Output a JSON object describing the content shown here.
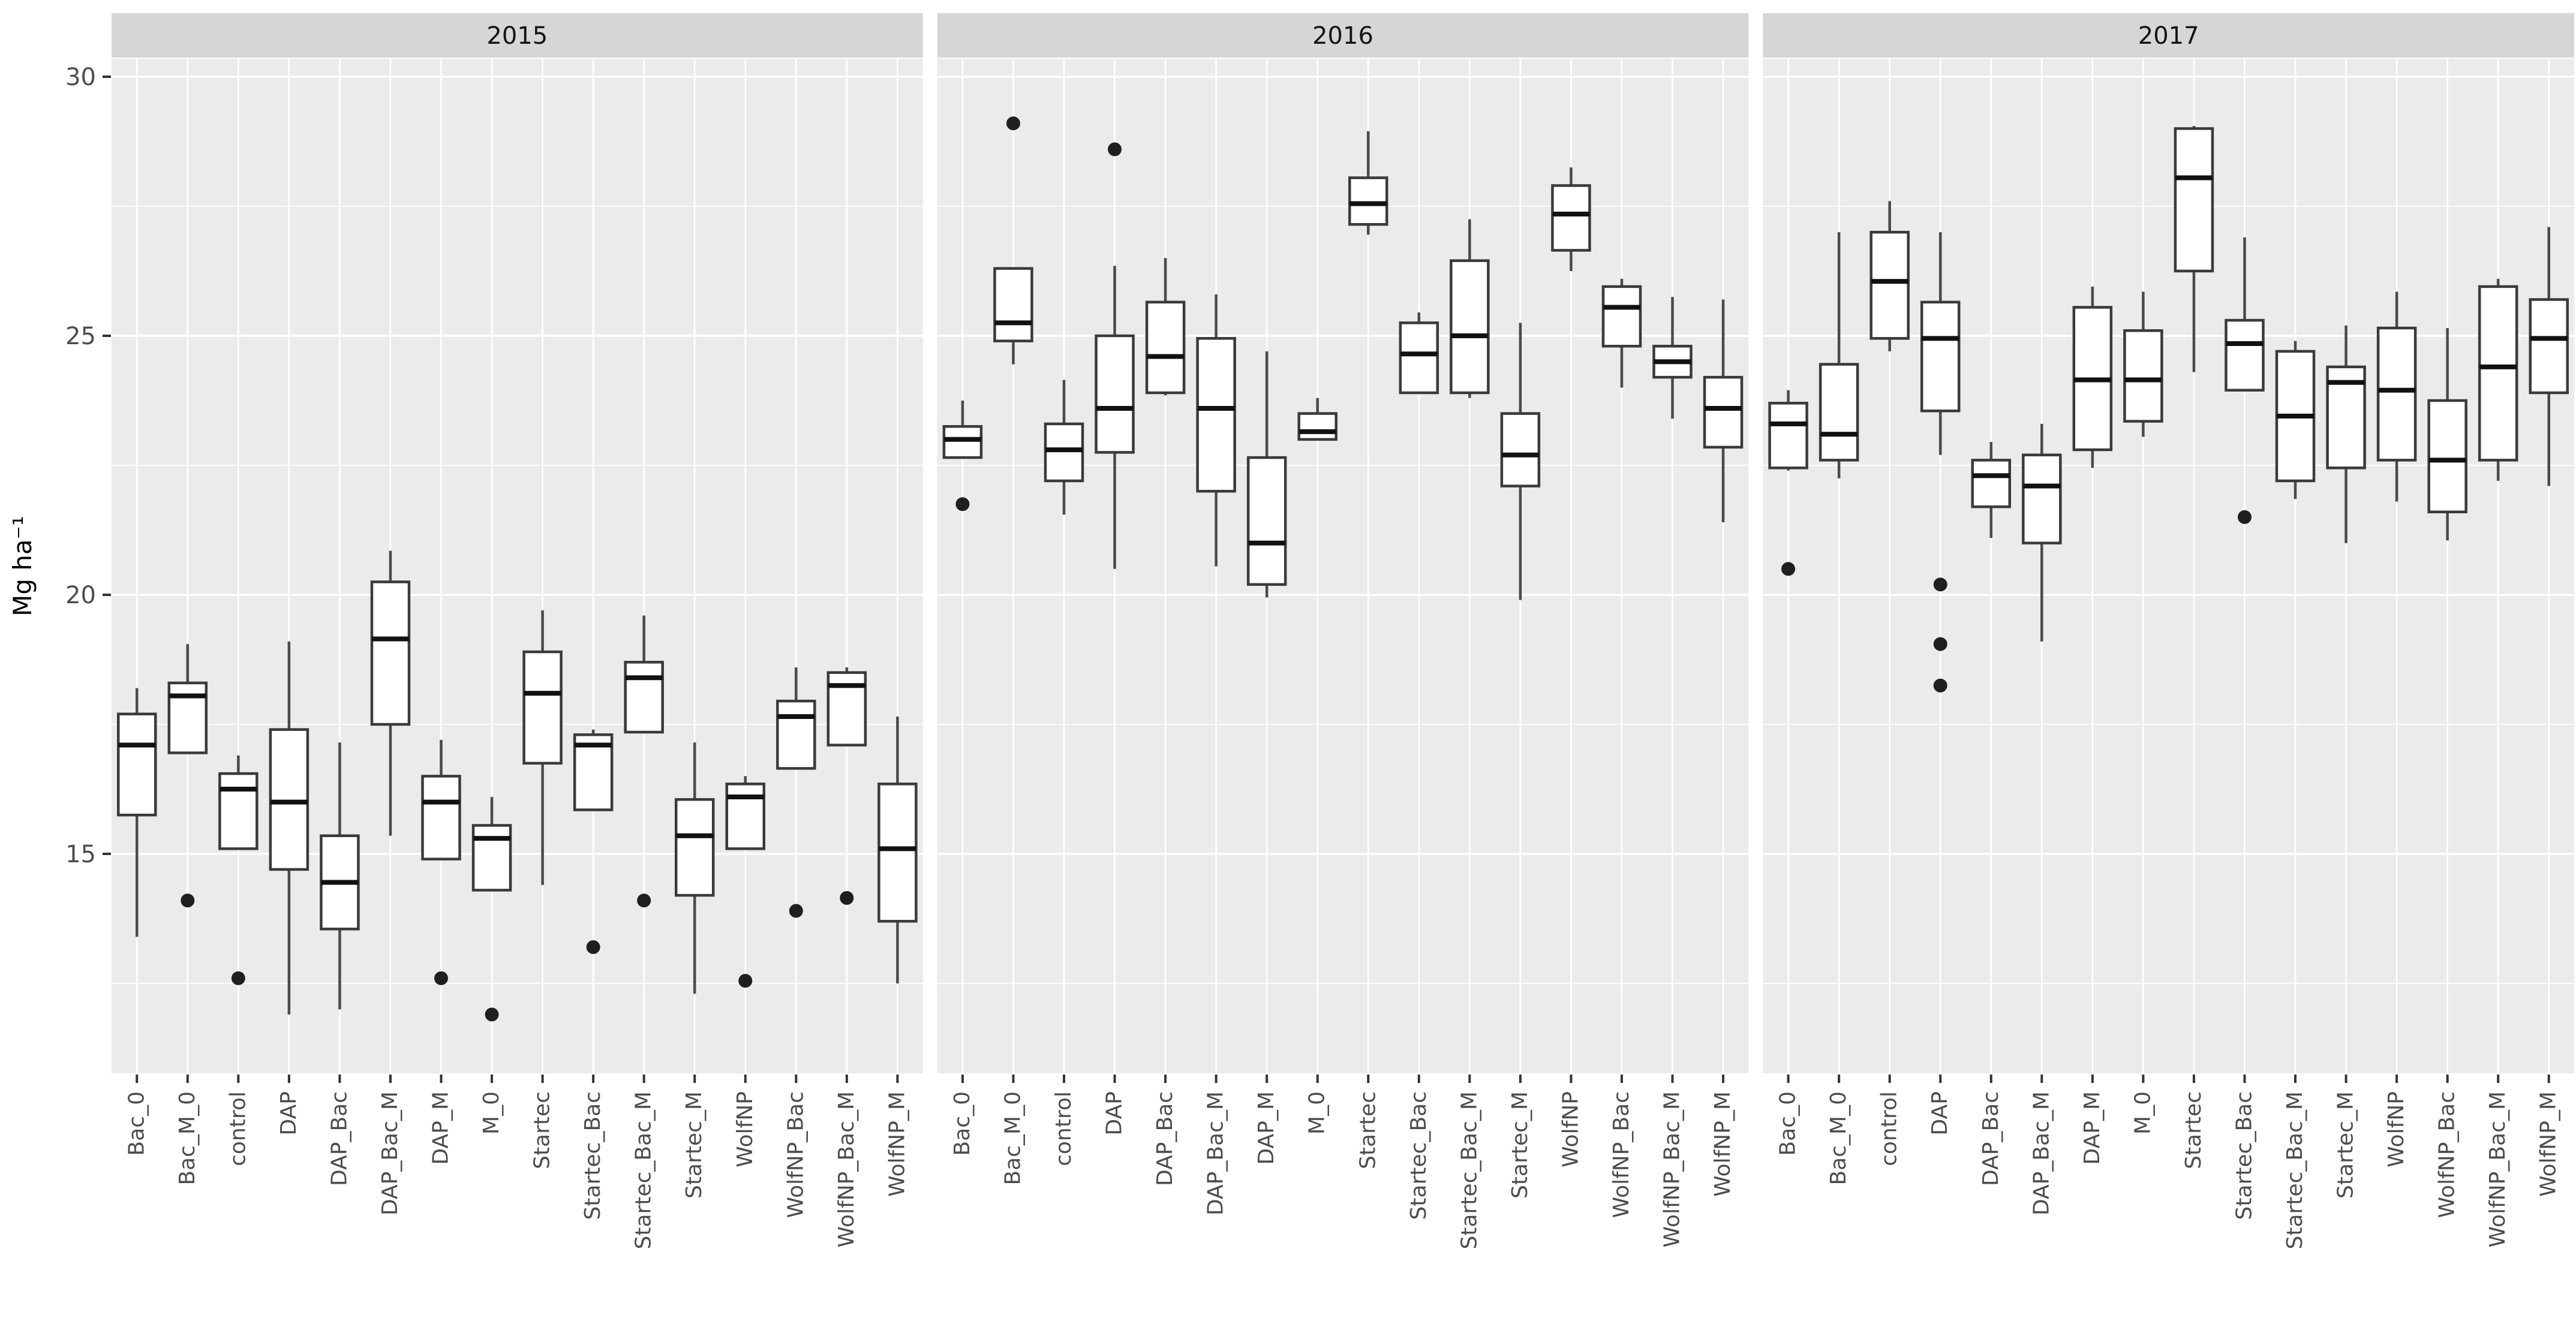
{
  "chart_data": {
    "type": "boxplot",
    "title": "",
    "ylabel": "Mg ha⁻¹",
    "xlabel": "",
    "legend": "none",
    "grid": "on",
    "y_axis": {
      "range": [
        10.8,
        30.35
      ],
      "ticks": [
        30,
        25,
        20,
        15
      ],
      "tick_labels": [
        "30",
        "25",
        "20",
        "15"
      ],
      "minor_gridlines": [
        27.5,
        22.5,
        17.5,
        12.5
      ]
    },
    "categories": [
      "Bac_0",
      "Bac_M_0",
      "control",
      "DAP",
      "DAP_Bac",
      "DAP_Bac_M",
      "DAP_M",
      "M_0",
      "Startec",
      "Startec_Bac",
      "Startec_Bac_M",
      "Startec_M",
      "WolfNP",
      "WolfNP_Bac",
      "WolfNP_Bac_M",
      "WolfNP_M"
    ],
    "panels": [
      {
        "title": "2015",
        "boxes": [
          {
            "category": "Bac_0",
            "lo": 13.4,
            "q1": 15.75,
            "med": 17.1,
            "q3": 17.7,
            "hi": 18.2,
            "out": []
          },
          {
            "category": "Bac_M_0",
            "lo": 16.95,
            "q1": 16.95,
            "med": 18.05,
            "q3": 18.3,
            "hi": 19.05,
            "out": [
              14.1
            ]
          },
          {
            "category": "control",
            "lo": 15.1,
            "q1": 15.1,
            "med": 16.25,
            "q3": 16.55,
            "hi": 16.9,
            "out": [
              12.6
            ]
          },
          {
            "category": "DAP",
            "lo": 11.9,
            "q1": 14.7,
            "med": 16.0,
            "q3": 17.4,
            "hi": 19.1,
            "out": []
          },
          {
            "category": "DAP_Bac",
            "lo": 12.0,
            "q1": 13.55,
            "med": 14.45,
            "q3": 15.35,
            "hi": 17.15,
            "out": []
          },
          {
            "category": "DAP_Bac_M",
            "lo": 15.35,
            "q1": 17.5,
            "med": 19.15,
            "q3": 20.25,
            "hi": 20.85,
            "out": []
          },
          {
            "category": "DAP_M",
            "lo": 14.9,
            "q1": 14.9,
            "med": 16.0,
            "q3": 16.5,
            "hi": 17.2,
            "out": [
              12.6
            ]
          },
          {
            "category": "M_0",
            "lo": 14.3,
            "q1": 14.3,
            "med": 15.3,
            "q3": 15.55,
            "hi": 16.1,
            "out": [
              11.9
            ]
          },
          {
            "category": "Startec",
            "lo": 14.4,
            "q1": 16.75,
            "med": 18.1,
            "q3": 18.9,
            "hi": 19.7,
            "out": []
          },
          {
            "category": "Startec_Bac",
            "lo": 15.85,
            "q1": 15.85,
            "med": 17.1,
            "q3": 17.3,
            "hi": 17.4,
            "out": [
              13.2
            ]
          },
          {
            "category": "Startec_Bac_M",
            "lo": 17.35,
            "q1": 17.35,
            "med": 18.4,
            "q3": 18.7,
            "hi": 19.6,
            "out": [
              14.1
            ]
          },
          {
            "category": "Startec_M",
            "lo": 12.3,
            "q1": 14.2,
            "med": 15.35,
            "q3": 16.05,
            "hi": 17.15,
            "out": []
          },
          {
            "category": "WolfNP",
            "lo": 15.1,
            "q1": 15.1,
            "med": 16.1,
            "q3": 16.35,
            "hi": 16.5,
            "out": [
              12.55
            ]
          },
          {
            "category": "WolfNP_Bac",
            "lo": 16.65,
            "q1": 16.65,
            "med": 17.65,
            "q3": 17.95,
            "hi": 18.6,
            "out": [
              13.9
            ]
          },
          {
            "category": "WolfNP_Bac_M",
            "lo": 17.1,
            "q1": 17.1,
            "med": 18.25,
            "q3": 18.5,
            "hi": 18.6,
            "out": [
              14.15
            ]
          },
          {
            "category": "WolfNP_M",
            "lo": 12.5,
            "q1": 13.7,
            "med": 15.1,
            "q3": 16.35,
            "hi": 17.65,
            "out": []
          }
        ]
      },
      {
        "title": "2016",
        "boxes": [
          {
            "category": "Bac_0",
            "lo": 22.65,
            "q1": 22.65,
            "med": 23.0,
            "q3": 23.25,
            "hi": 23.75,
            "out": [
              21.75
            ]
          },
          {
            "category": "Bac_M_0",
            "lo": 24.45,
            "q1": 24.9,
            "med": 25.25,
            "q3": 26.3,
            "hi": 26.3,
            "out": [
              29.1
            ]
          },
          {
            "category": "control",
            "lo": 21.55,
            "q1": 22.2,
            "med": 22.8,
            "q3": 23.3,
            "hi": 24.15,
            "out": []
          },
          {
            "category": "DAP",
            "lo": 20.5,
            "q1": 22.75,
            "med": 23.6,
            "q3": 25.0,
            "hi": 26.35,
            "out": [
              28.6
            ]
          },
          {
            "category": "DAP_Bac",
            "lo": 23.85,
            "q1": 23.9,
            "med": 24.6,
            "q3": 25.65,
            "hi": 26.5,
            "out": []
          },
          {
            "category": "DAP_Bac_M",
            "lo": 20.55,
            "q1": 22.0,
            "med": 23.6,
            "q3": 24.95,
            "hi": 25.8,
            "out": []
          },
          {
            "category": "DAP_M",
            "lo": 19.95,
            "q1": 20.2,
            "med": 21.0,
            "q3": 22.65,
            "hi": 24.7,
            "out": []
          },
          {
            "category": "M_0",
            "lo": 23.0,
            "q1": 23.0,
            "med": 23.15,
            "q3": 23.5,
            "hi": 23.8,
            "out": []
          },
          {
            "category": "Startec",
            "lo": 26.95,
            "q1": 27.15,
            "med": 27.55,
            "q3": 28.05,
            "hi": 28.95,
            "out": []
          },
          {
            "category": "Startec_Bac",
            "lo": 23.9,
            "q1": 23.9,
            "med": 24.65,
            "q3": 25.25,
            "hi": 25.45,
            "out": []
          },
          {
            "category": "Startec_Bac_M",
            "lo": 23.8,
            "q1": 23.9,
            "med": 25.0,
            "q3": 26.45,
            "hi": 27.25,
            "out": []
          },
          {
            "category": "Startec_M",
            "lo": 19.9,
            "q1": 22.1,
            "med": 22.7,
            "q3": 23.5,
            "hi": 25.25,
            "out": []
          },
          {
            "category": "WolfNP",
            "lo": 26.25,
            "q1": 26.65,
            "med": 27.35,
            "q3": 27.9,
            "hi": 28.25,
            "out": []
          },
          {
            "category": "WolfNP_Bac",
            "lo": 24.0,
            "q1": 24.8,
            "med": 25.55,
            "q3": 25.95,
            "hi": 26.1,
            "out": []
          },
          {
            "category": "WolfNP_Bac_M",
            "lo": 23.4,
            "q1": 24.2,
            "med": 24.5,
            "q3": 24.8,
            "hi": 25.75,
            "out": []
          },
          {
            "category": "WolfNP_M",
            "lo": 21.4,
            "q1": 22.85,
            "med": 23.6,
            "q3": 24.2,
            "hi": 25.7,
            "out": []
          }
        ]
      },
      {
        "title": "2017",
        "boxes": [
          {
            "category": "Bac_0",
            "lo": 22.4,
            "q1": 22.45,
            "med": 23.3,
            "q3": 23.7,
            "hi": 23.95,
            "out": [
              20.5
            ]
          },
          {
            "category": "Bac_M_0",
            "lo": 22.25,
            "q1": 22.6,
            "med": 23.1,
            "q3": 24.45,
            "hi": 27.0,
            "out": []
          },
          {
            "category": "control",
            "lo": 24.7,
            "q1": 24.95,
            "med": 26.05,
            "q3": 27.0,
            "hi": 27.6,
            "out": []
          },
          {
            "category": "DAP",
            "lo": 22.7,
            "q1": 23.55,
            "med": 24.95,
            "q3": 25.65,
            "hi": 27.0,
            "out": [
              20.2,
              19.05,
              18.25
            ]
          },
          {
            "category": "DAP_Bac",
            "lo": 21.1,
            "q1": 21.7,
            "med": 22.3,
            "q3": 22.6,
            "hi": 22.95,
            "out": []
          },
          {
            "category": "DAP_Bac_M",
            "lo": 19.1,
            "q1": 21.0,
            "med": 22.1,
            "q3": 22.7,
            "hi": 23.3,
            "out": []
          },
          {
            "category": "DAP_M",
            "lo": 22.45,
            "q1": 22.8,
            "med": 24.15,
            "q3": 25.55,
            "hi": 25.95,
            "out": []
          },
          {
            "category": "M_0",
            "lo": 23.05,
            "q1": 23.35,
            "med": 24.15,
            "q3": 25.1,
            "hi": 25.85,
            "out": []
          },
          {
            "category": "Startec",
            "lo": 24.3,
            "q1": 26.25,
            "med": 28.05,
            "q3": 29.0,
            "hi": 29.05,
            "out": []
          },
          {
            "category": "Startec_Bac",
            "lo": 23.95,
            "q1": 23.95,
            "med": 24.85,
            "q3": 25.3,
            "hi": 26.9,
            "out": [
              21.5
            ]
          },
          {
            "category": "Startec_Bac_M",
            "lo": 21.85,
            "q1": 22.2,
            "med": 23.45,
            "q3": 24.7,
            "hi": 24.9,
            "out": []
          },
          {
            "category": "Startec_M",
            "lo": 21.0,
            "q1": 22.45,
            "med": 24.1,
            "q3": 24.4,
            "hi": 25.2,
            "out": []
          },
          {
            "category": "WolfNP",
            "lo": 21.8,
            "q1": 22.6,
            "med": 23.95,
            "q3": 25.15,
            "hi": 25.85,
            "out": []
          },
          {
            "category": "WolfNP_Bac",
            "lo": 21.05,
            "q1": 21.6,
            "med": 22.6,
            "q3": 23.75,
            "hi": 25.15,
            "out": []
          },
          {
            "category": "WolfNP_Bac_M",
            "lo": 22.2,
            "q1": 22.6,
            "med": 24.4,
            "q3": 25.95,
            "hi": 26.1,
            "out": []
          },
          {
            "category": "WolfNP_M",
            "lo": 22.1,
            "q1": 23.9,
            "med": 24.95,
            "q3": 25.7,
            "hi": 27.1,
            "out": []
          }
        ]
      }
    ],
    "colors": {
      "background": "#ffffff",
      "panel_bg": "#ebebeb",
      "strip_bg": "#d6d6d6",
      "strip_text": "#141414",
      "grid": "#ffffff",
      "box_fill": "#ffffff",
      "box_border": "#3a3a3a",
      "median": "#111111",
      "whisker": "#4a4a4a",
      "outlier": "#1f1f1f",
      "axis_text": "#4d4d4d",
      "tick": "#333333"
    }
  }
}
